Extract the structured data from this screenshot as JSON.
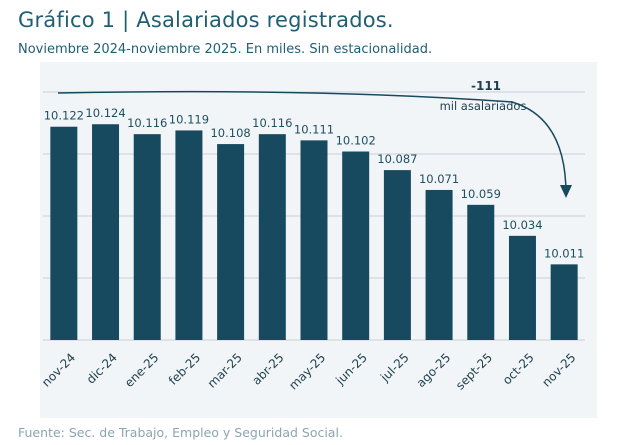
{
  "header": {
    "title": "Gráfico 1 | Asalariados registrados.",
    "subtitle": "Noviembre 2024-noviembre 2025. En miles. Sin estacionalidad."
  },
  "footer": {
    "source": "Fuente: Sec. de Trabajo, Empleo y Seguridad Social."
  },
  "annotation": {
    "value": "-111",
    "text": "mil asalariados"
  },
  "colors": {
    "bar": "#174a5e",
    "panel": "#f2f5f7",
    "title": "#1f5f73"
  },
  "chart_data": {
    "type": "bar",
    "categories": [
      "nov-24",
      "dic-24",
      "ene-25",
      "feb-25",
      "mar-25",
      "abr-25",
      "may-25",
      "jun-25",
      "jul-25",
      "ago-25",
      "sept-25",
      "oct-25",
      "nov-25"
    ],
    "values": [
      10122,
      10124,
      10116,
      10119,
      10108,
      10116,
      10111,
      10102,
      10087,
      10071,
      10059,
      10034,
      10011
    ],
    "value_labels": [
      "10.122",
      "10.124",
      "10.116",
      "10.119",
      "10.108",
      "10.116",
      "10.111",
      "10.102",
      "10.087",
      "10.071",
      "10.059",
      "10.034",
      "10.011"
    ],
    "ylim": [
      9950,
      10150
    ],
    "grid": true,
    "y_ticks_visible": false
  }
}
